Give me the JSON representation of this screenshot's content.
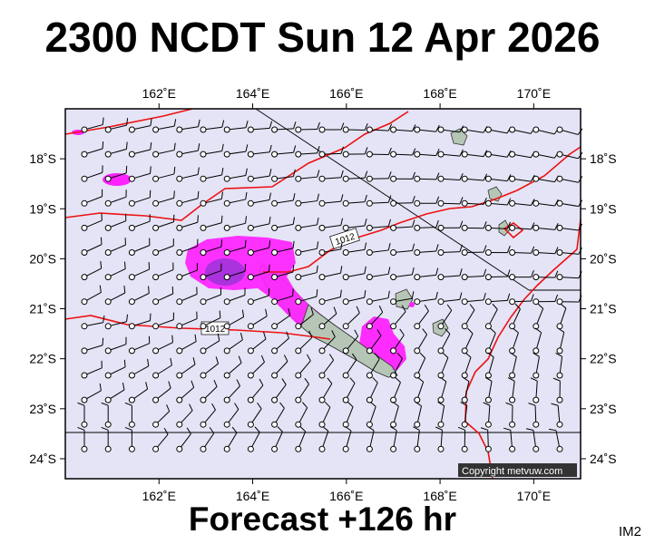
{
  "title": "2300 NCDT Sun 12 Apr 2026",
  "forecast": "Forecast +126 hr",
  "image_code": "IM2",
  "copyright": "Copyright metvuw.com",
  "map": {
    "lon_labels": [
      "162˚E",
      "164˚E",
      "166˚E",
      "168˚E",
      "170˚E"
    ],
    "lon_values": [
      162,
      164,
      166,
      168,
      170
    ],
    "lat_labels": [
      "18˚S",
      "19˚S",
      "20˚S",
      "21˚S",
      "22˚S",
      "23˚S",
      "24˚S"
    ],
    "lat_values": [
      -18,
      -19,
      -20,
      -21,
      -22,
      -23,
      -24
    ],
    "lon_range": [
      160.0,
      171.0
    ],
    "lat_range": [
      -24.4,
      -17.0
    ],
    "isobar_labels": [
      "1012",
      "1012"
    ],
    "colors": {
      "ocean": "#e4e4f6",
      "land": "#b6c6b6",
      "isobar": "#ee1111",
      "rain_light": "#ff00ff",
      "rain_medium": "#cc00ee",
      "rain_heavy": "#9933dd"
    }
  }
}
